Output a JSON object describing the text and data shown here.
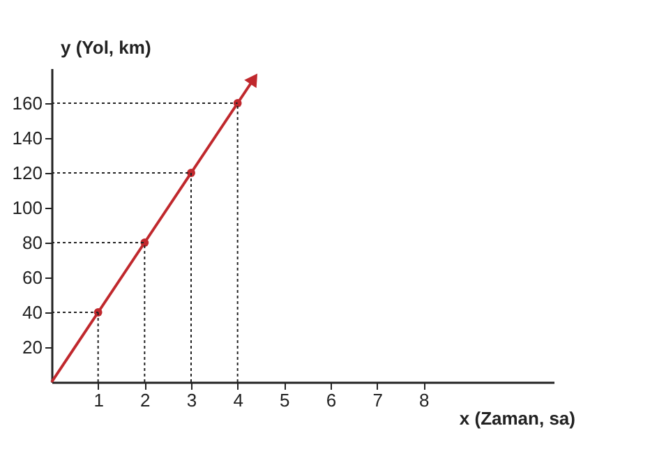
{
  "chart_data": {
    "type": "line",
    "xlabel": "x (Zaman, sa)",
    "ylabel": "y (Yol, km)",
    "series": [
      {
        "type": "line",
        "color": "#c0282d",
        "x": [
          0,
          1,
          2,
          3,
          4,
          4.35
        ],
        "values": [
          0,
          40,
          80,
          120,
          160,
          174
        ],
        "marker": "none"
      },
      {
        "type": "scatter",
        "color": "#c0282d",
        "x": [
          1,
          2,
          3,
          4
        ],
        "values": [
          40,
          80,
          120,
          160
        ],
        "marker": "circle"
      }
    ],
    "ref_lines": [
      {
        "axis": "x",
        "value": 1,
        "line_style": "dotted",
        "color": "#222222"
      },
      {
        "axis": "x",
        "value": 2,
        "line_style": "dotted",
        "color": "#222222"
      },
      {
        "axis": "x",
        "value": 3,
        "line_style": "dotted",
        "color": "#222222"
      },
      {
        "axis": "x",
        "value": 4,
        "line_style": "dotted",
        "color": "#222222"
      },
      {
        "axis": "y",
        "value": 40,
        "line_style": "dotted",
        "color": "#222222"
      },
      {
        "axis": "y",
        "value": 80,
        "line_style": "dotted",
        "color": "#222222"
      },
      {
        "axis": "y",
        "value": 120,
        "line_style": "dotted",
        "color": "#222222"
      },
      {
        "axis": "y",
        "value": 160,
        "line_style": "dotted",
        "color": "#222222"
      }
    ],
    "xlim": [
      0,
      10.8
    ],
    "ylim": [
      0,
      180
    ],
    "xticks": [
      1,
      2,
      3,
      4,
      5,
      6,
      7,
      8
    ],
    "yticks": [
      20,
      40,
      60,
      80,
      100,
      120,
      140,
      160
    ],
    "grid": false
  }
}
